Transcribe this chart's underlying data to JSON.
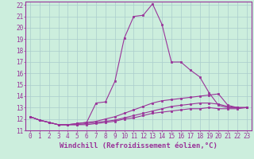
{
  "xlabel": "Windchill (Refroidissement éolien,°C)",
  "xlim": [
    -0.5,
    23.5
  ],
  "ylim": [
    11,
    22.3
  ],
  "xticks": [
    0,
    1,
    2,
    3,
    4,
    5,
    6,
    7,
    8,
    9,
    10,
    11,
    12,
    13,
    14,
    15,
    16,
    17,
    18,
    19,
    20,
    21,
    22,
    23
  ],
  "yticks": [
    11,
    12,
    13,
    14,
    15,
    16,
    17,
    18,
    19,
    20,
    21,
    22
  ],
  "background_color": "#cceedd",
  "grid_color": "#aacccc",
  "line_color": "#993399",
  "spine_color": "#993399",
  "lines": [
    {
      "x": [
        0,
        1,
        2,
        3,
        4,
        5,
        6,
        7,
        8,
        9,
        10,
        11,
        12,
        13,
        14,
        15,
        16,
        17,
        18,
        19,
        20,
        21,
        22,
        23
      ],
      "y": [
        12.2,
        11.9,
        11.7,
        11.5,
        11.5,
        11.6,
        11.7,
        13.4,
        13.5,
        15.3,
        19.1,
        21.0,
        21.1,
        22.1,
        20.3,
        17.0,
        17.0,
        16.3,
        15.7,
        14.3,
        13.2,
        13.0,
        13.0,
        13.0
      ]
    },
    {
      "x": [
        0,
        1,
        2,
        3,
        4,
        5,
        6,
        7,
        8,
        9,
        10,
        11,
        12,
        13,
        14,
        15,
        16,
        17,
        18,
        19,
        20,
        21,
        22,
        23
      ],
      "y": [
        12.2,
        11.9,
        11.7,
        11.5,
        11.5,
        11.6,
        11.7,
        11.8,
        12.0,
        12.2,
        12.5,
        12.8,
        13.1,
        13.4,
        13.6,
        13.7,
        13.8,
        13.9,
        14.0,
        14.1,
        14.2,
        13.2,
        13.0,
        13.0
      ]
    },
    {
      "x": [
        0,
        1,
        2,
        3,
        4,
        5,
        6,
        7,
        8,
        9,
        10,
        11,
        12,
        13,
        14,
        15,
        16,
        17,
        18,
        19,
        20,
        21,
        22,
        23
      ],
      "y": [
        12.2,
        11.9,
        11.7,
        11.5,
        11.5,
        11.5,
        11.6,
        11.7,
        11.8,
        11.9,
        12.1,
        12.3,
        12.5,
        12.7,
        12.9,
        13.1,
        13.2,
        13.3,
        13.4,
        13.4,
        13.3,
        13.1,
        13.0,
        13.0
      ]
    },
    {
      "x": [
        0,
        1,
        2,
        3,
        4,
        5,
        6,
        7,
        8,
        9,
        10,
        11,
        12,
        13,
        14,
        15,
        16,
        17,
        18,
        19,
        20,
        21,
        22,
        23
      ],
      "y": [
        12.2,
        11.9,
        11.7,
        11.5,
        11.5,
        11.5,
        11.5,
        11.6,
        11.7,
        11.8,
        12.0,
        12.1,
        12.3,
        12.5,
        12.6,
        12.7,
        12.8,
        12.9,
        12.9,
        13.0,
        12.9,
        12.9,
        12.9,
        13.0
      ]
    }
  ],
  "font_family": "monospace",
  "tick_fontsize": 5.5,
  "label_fontsize": 6.5,
  "linewidth": 0.8,
  "markersize": 1.8
}
